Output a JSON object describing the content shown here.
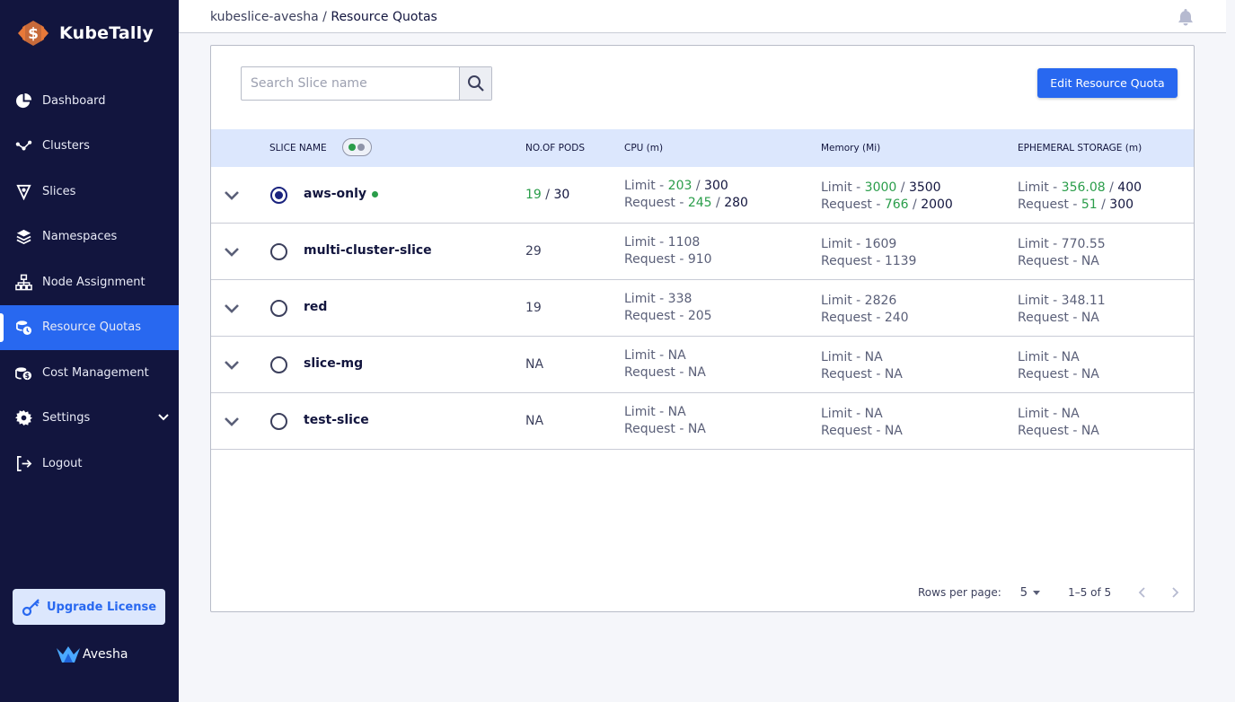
{
  "brand": {
    "name": "KubeTally"
  },
  "sidebar": {
    "items": [
      {
        "label": "Dashboard",
        "icon": "pie-chart-icon"
      },
      {
        "label": "Clusters",
        "icon": "cluster-nodes-icon"
      },
      {
        "label": "Slices",
        "icon": "slice-icon"
      },
      {
        "label": "Namespaces",
        "icon": "layers-icon"
      },
      {
        "label": "Node Assignment",
        "icon": "hierarchy-icon"
      },
      {
        "label": "Resource Quotas",
        "icon": "quota-icon",
        "active": true
      },
      {
        "label": "Cost Management",
        "icon": "coins-icon"
      },
      {
        "label": "Settings",
        "icon": "gear-icon"
      },
      {
        "label": "Logout",
        "icon": "logout-icon"
      }
    ],
    "upgrade_label": "Upgrade License",
    "footer_brand": "Avesha"
  },
  "header": {
    "breadcrumb_parent": "kubeslice-avesha",
    "breadcrumb_sep": " / ",
    "breadcrumb_current": "Resource Quotas"
  },
  "search": {
    "placeholder": "Search Slice name"
  },
  "edit_button": "Edit Resource Quota",
  "table": {
    "columns": {
      "slice_name": "SLICE NAME",
      "pods": "NO.OF PODS",
      "cpu": "CPU (m)",
      "memory": "Memory (Mi)",
      "storage": "EPHEMERAL STORAGE (m)"
    },
    "rows": [
      {
        "name": "aws-only",
        "pods_used": "19",
        "pods_sep": " / ",
        "pods_total": "30",
        "cpu_limit_label": "Limit - ",
        "cpu_limit_used": "203",
        "cpu_limit_sep": " / ",
        "cpu_limit_total": "300",
        "cpu_req_label": "Request - ",
        "cpu_req_used": "245",
        "cpu_req_sep": " / ",
        "cpu_req_total": "280",
        "mem_limit_label": "Limit - ",
        "mem_limit_used": "3000",
        "mem_limit_sep": " / ",
        "mem_limit_total": "3500",
        "mem_req_label": "Request - ",
        "mem_req_used": "766",
        "mem_req_sep": " / ",
        "mem_req_total": "2000",
        "sto_limit_label": "Limit - ",
        "sto_limit_used": "356.08",
        "sto_limit_sep": " / ",
        "sto_limit_total": "400",
        "sto_req_label": "Request - ",
        "sto_req_used": "51",
        "sto_req_sep": " / ",
        "sto_req_total": "300"
      },
      {
        "name": "multi-cluster-slice",
        "pods": "29",
        "cpu_limit": "Limit - 1108",
        "cpu_req": "Request - 910",
        "mem_limit": "Limit - 1609",
        "mem_req": "Request - 1139",
        "sto_limit": "Limit - 770.55",
        "sto_req": "Request - NA"
      },
      {
        "name": "red",
        "pods": "19",
        "cpu_limit": "Limit - 338",
        "cpu_req": "Request - 205",
        "mem_limit": "Limit - 2826",
        "mem_req": "Request - 240",
        "sto_limit": "Limit - 348.11",
        "sto_req": "Request - NA"
      },
      {
        "name": "slice-mg",
        "pods": "NA",
        "cpu_limit": "Limit - NA",
        "cpu_req": "Request - NA",
        "mem_limit": "Limit - NA",
        "mem_req": "Request - NA",
        "sto_limit": "Limit - NA",
        "sto_req": "Request - NA"
      },
      {
        "name": "test-slice",
        "pods": "NA",
        "cpu_limit": "Limit - NA",
        "cpu_req": "Request - NA",
        "mem_limit": "Limit - NA",
        "mem_req": "Request - NA",
        "sto_limit": "Limit - NA",
        "sto_req": "Request - NA"
      }
    ]
  },
  "pagination": {
    "rows_per_page_label": "Rows per page:",
    "rows_per_page": "5",
    "range": "1–5 of 5"
  },
  "colors": {
    "sidebar_bg": "#12153e",
    "accent": "#2868f0",
    "header_row_bg": "#dce7fd",
    "used_value": "#2a9d4a",
    "brand_orange": "#e8793a"
  }
}
